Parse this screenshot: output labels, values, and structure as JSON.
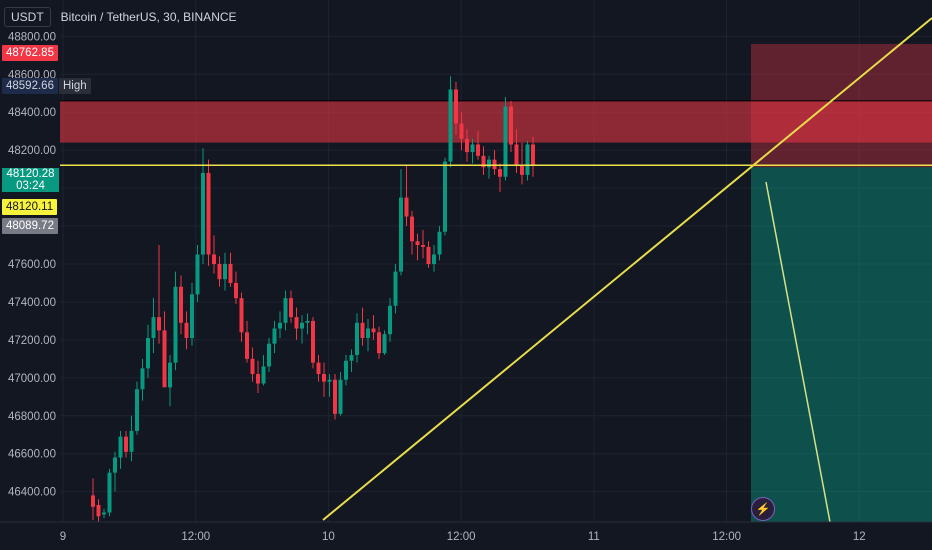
{
  "header": {
    "currency_button": "USDT",
    "symbol_title": "Bitcoin / TetherUS, 30, BINANCE"
  },
  "price_labels": {
    "red_top": "48762.85",
    "high_value": "48592.66",
    "high_tag": "High",
    "current_price": "48120.28",
    "countdown": "03:24",
    "yellow_line_price": "48120.11",
    "gray_label": "48089.72"
  },
  "colors": {
    "background": "#131722",
    "up": "#089981",
    "down": "#f23645",
    "trendline": "#e8dd4a",
    "resistance_zone": "#f23645",
    "target_zone": "#089981"
  },
  "icons": {
    "watermark": "tradingview-lightning-icon"
  },
  "chart_data": {
    "type": "candlestick",
    "title": "Bitcoin / TetherUS, 30, BINANCE",
    "interval": "30",
    "ylim": [
      46240,
      48960
    ],
    "y_ticks": [
      "46400.00",
      "46600.00",
      "46800.00",
      "47000.00",
      "47200.00",
      "47400.00",
      "47600.00",
      "47800.00",
      "48000.00",
      "48200.00",
      "48400.00",
      "48600.00",
      "48800.00"
    ],
    "x_ticks": [
      {
        "label": "9",
        "x": 0
      },
      {
        "label": "12:00",
        "x": 24
      },
      {
        "label": "10",
        "x": 48
      },
      {
        "label": "12:00",
        "x": 72
      },
      {
        "label": "11",
        "x": 96
      },
      {
        "label": "12:00",
        "x": 120
      },
      {
        "label": "12",
        "x": 144
      }
    ],
    "grid": true,
    "candles": [
      [
        46380,
        46470,
        46250,
        46320
      ],
      [
        46330,
        46360,
        46240,
        46270
      ],
      [
        46280,
        46310,
        46260,
        46290
      ],
      [
        46290,
        46520,
        46270,
        46500
      ],
      [
        46500,
        46610,
        46400,
        46580
      ],
      [
        46580,
        46720,
        46520,
        46690
      ],
      [
        46690,
        46720,
        46580,
        46610
      ],
      [
        46610,
        46800,
        46560,
        46720
      ],
      [
        46720,
        46980,
        46700,
        46940
      ],
      [
        46940,
        47100,
        46880,
        47050
      ],
      [
        47050,
        47280,
        47000,
        47210
      ],
      [
        47210,
        47420,
        47130,
        47320
      ],
      [
        47320,
        47700,
        47180,
        47250
      ],
      [
        47250,
        47350,
        46960,
        46950
      ],
      [
        46950,
        47120,
        46850,
        47080
      ],
      [
        47080,
        47560,
        47040,
        47480
      ],
      [
        47480,
        47540,
        47230,
        47290
      ],
      [
        47290,
        47350,
        47150,
        47210
      ],
      [
        47210,
        47500,
        47170,
        47440
      ],
      [
        47440,
        47700,
        47400,
        47650
      ],
      [
        47650,
        48210,
        47600,
        48080
      ],
      [
        48080,
        48150,
        47590,
        47650
      ],
      [
        47650,
        47750,
        47550,
        47600
      ],
      [
        47600,
        47640,
        47480,
        47520
      ],
      [
        47520,
        47660,
        47460,
        47600
      ],
      [
        47600,
        47660,
        47480,
        47500
      ],
      [
        47500,
        47560,
        47390,
        47420
      ],
      [
        47420,
        47450,
        47190,
        47240
      ],
      [
        47240,
        47300,
        47080,
        47100
      ],
      [
        47100,
        47160,
        46980,
        47020
      ],
      [
        47020,
        47090,
        46920,
        46970
      ],
      [
        46970,
        47120,
        46960,
        47060
      ],
      [
        47060,
        47210,
        47030,
        47180
      ],
      [
        47180,
        47300,
        47130,
        47260
      ],
      [
        47260,
        47350,
        47210,
        47290
      ],
      [
        47290,
        47460,
        47250,
        47420
      ],
      [
        47420,
        47460,
        47290,
        47320
      ],
      [
        47320,
        47370,
        47200,
        47260
      ],
      [
        47260,
        47330,
        47180,
        47290
      ],
      [
        47290,
        47340,
        47230,
        47300
      ],
      [
        47300,
        47320,
        47050,
        47080
      ],
      [
        47080,
        47120,
        46980,
        47020
      ],
      [
        47020,
        47080,
        46900,
        46980
      ],
      [
        46980,
        47020,
        46900,
        46990
      ],
      [
        46990,
        47020,
        46780,
        46810
      ],
      [
        46810,
        47030,
        46800,
        46990
      ],
      [
        46990,
        47120,
        46960,
        47090
      ],
      [
        47090,
        47150,
        47030,
        47120
      ],
      [
        47120,
        47340,
        47080,
        47290
      ],
      [
        47290,
        47370,
        47170,
        47210
      ],
      [
        47210,
        47310,
        47140,
        47260
      ],
      [
        47260,
        47330,
        47200,
        47240
      ],
      [
        47240,
        47270,
        47100,
        47130
      ],
      [
        47130,
        47250,
        47120,
        47230
      ],
      [
        47230,
        47420,
        47190,
        47380
      ],
      [
        47380,
        47600,
        47340,
        47560
      ],
      [
        47560,
        48100,
        47540,
        47950
      ],
      [
        47950,
        48120,
        47800,
        47850
      ],
      [
        47850,
        47880,
        47650,
        47720
      ],
      [
        47720,
        47760,
        47620,
        47700
      ],
      [
        47700,
        47780,
        47630,
        47690
      ],
      [
        47690,
        47720,
        47580,
        47600
      ],
      [
        47600,
        47700,
        47560,
        47650
      ],
      [
        47650,
        47800,
        47620,
        47770
      ],
      [
        47770,
        48160,
        47750,
        48140
      ],
      [
        48140,
        48590,
        48110,
        48520
      ],
      [
        48520,
        48560,
        48280,
        48340
      ],
      [
        48340,
        48400,
        48200,
        48260
      ],
      [
        48260,
        48310,
        48140,
        48190
      ],
      [
        48190,
        48260,
        48130,
        48230
      ],
      [
        48230,
        48300,
        48150,
        48170
      ],
      [
        48170,
        48220,
        48070,
        48110
      ],
      [
        48110,
        48170,
        48050,
        48150
      ],
      [
        48150,
        48200,
        48070,
        48100
      ],
      [
        48100,
        48130,
        47980,
        48060
      ],
      [
        48060,
        48480,
        48040,
        48430
      ],
      [
        48430,
        48460,
        48190,
        48230
      ],
      [
        48230,
        48310,
        48080,
        48120
      ],
      [
        48120,
        48240,
        48020,
        48070
      ],
      [
        48070,
        48250,
        48040,
        48230
      ],
      [
        48230,
        48270,
        48060,
        48120
      ]
    ],
    "zones": [
      {
        "name": "resistance",
        "from": 48240,
        "to": 48460
      },
      {
        "name": "stop",
        "from": 48110,
        "to": 48760
      },
      {
        "name": "target",
        "from": 46220,
        "to": 48110
      }
    ],
    "levels": [
      48120.28
    ]
  }
}
